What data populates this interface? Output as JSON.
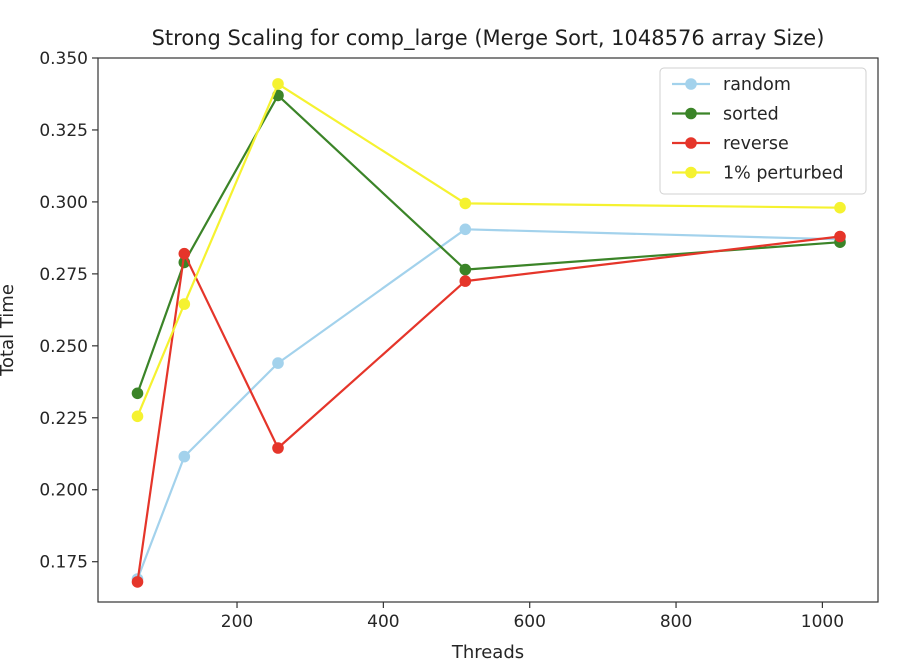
{
  "chart_data": {
    "type": "line",
    "title": "Strong Scaling for comp_large (Merge Sort, 1048576 array Size)",
    "xlabel": "Threads",
    "ylabel": "Total Time",
    "xlim": [
      10,
      1076
    ],
    "ylim": [
      0.161,
      0.35
    ],
    "x_ticks": [
      200,
      400,
      600,
      800,
      1000
    ],
    "y_ticks": [
      0.175,
      0.2,
      0.225,
      0.25,
      0.275,
      0.3,
      0.325,
      0.35
    ],
    "x_tick_labels": [
      "200",
      "400",
      "600",
      "800",
      "1000"
    ],
    "y_tick_labels": [
      "0.175",
      "0.200",
      "0.225",
      "0.250",
      "0.275",
      "0.300",
      "0.325",
      "0.350"
    ],
    "grid": false,
    "legend_position": "top-right",
    "x": [
      64,
      128,
      256,
      512,
      1024
    ],
    "series": [
      {
        "name": "random",
        "color": "#a3d2ec",
        "values": [
          0.169,
          0.2115,
          0.244,
          0.2905,
          0.287
        ]
      },
      {
        "name": "sorted",
        "color": "#3b8428",
        "values": [
          0.2335,
          0.279,
          0.337,
          0.2765,
          0.286
        ]
      },
      {
        "name": "reverse",
        "color": "#e5352a",
        "values": [
          0.168,
          0.282,
          0.2145,
          0.2725,
          0.288
        ]
      },
      {
        "name": "1% perturbed",
        "color": "#f5f230",
        "values": [
          0.2255,
          0.2645,
          0.341,
          0.2995,
          0.298
        ]
      }
    ]
  }
}
